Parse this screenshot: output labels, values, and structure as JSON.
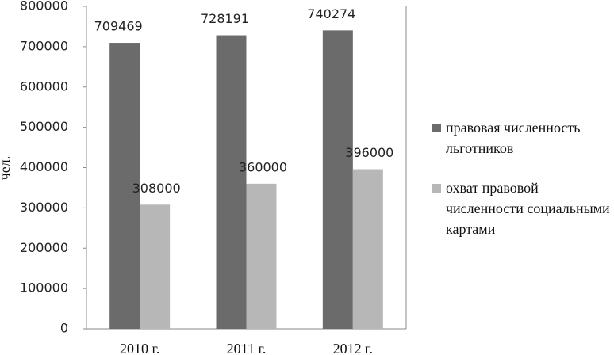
{
  "chart_data": {
    "type": "bar",
    "y_label": "чел.",
    "categories": [
      "2010 г.",
      "2011 г.",
      "2012 г."
    ],
    "series": [
      {
        "name": "правовая численность льготников",
        "color": "#6b6b6b",
        "values": [
          709469,
          728191,
          740274
        ]
      },
      {
        "name": "охват правовой численности социальными картами",
        "color": "#b7b7b7",
        "values": [
          308000,
          360000,
          396000
        ]
      }
    ],
    "ylim": [
      0,
      800000
    ],
    "yticks": [
      0,
      100000,
      200000,
      300000,
      400000,
      500000,
      600000,
      700000,
      800000
    ],
    "legend": "right"
  }
}
